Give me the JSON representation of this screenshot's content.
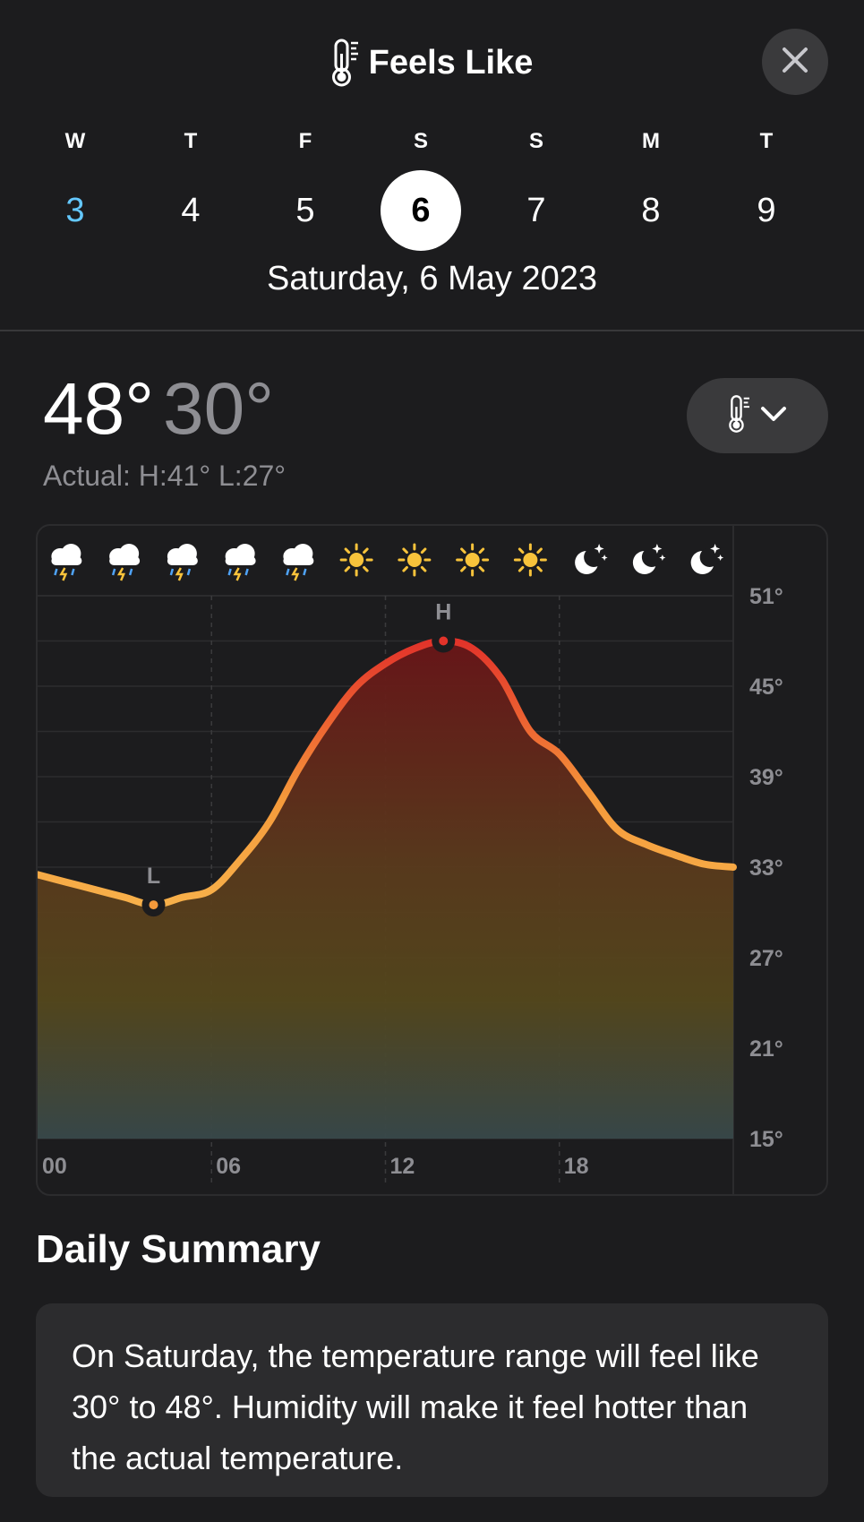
{
  "header": {
    "title": "Feels Like",
    "title_icon": "thermometer-icon",
    "close_icon": "close-icon"
  },
  "days": [
    {
      "letter": "W",
      "num": "3",
      "state": "today"
    },
    {
      "letter": "T",
      "num": "4",
      "state": ""
    },
    {
      "letter": "F",
      "num": "5",
      "state": ""
    },
    {
      "letter": "S",
      "num": "6",
      "state": "selected"
    },
    {
      "letter": "S",
      "num": "7",
      "state": ""
    },
    {
      "letter": "M",
      "num": "8",
      "state": ""
    },
    {
      "letter": "T",
      "num": "9",
      "state": ""
    }
  ],
  "selected_date": "Saturday, 6 May 2023",
  "summary_temps": {
    "high": "48°",
    "low": "30°",
    "actual": "Actual: H:41° L:27°"
  },
  "metric_selector": {
    "icon": "thermometer-icon",
    "chevron": "chevron-down-icon"
  },
  "chart_data": {
    "type": "area",
    "x_ticks": [
      "00",
      "06",
      "12",
      "18"
    ],
    "y_ticks": [
      "51°",
      "45°",
      "39°",
      "33°",
      "27°",
      "21°",
      "15°"
    ],
    "ylim": [
      15,
      51
    ],
    "xlim": [
      0,
      24
    ],
    "weather_icons": [
      "thunderstorm",
      "thunderstorm",
      "thunderstorm",
      "thunderstorm",
      "thunderstorm",
      "sun",
      "sun",
      "sun",
      "sun",
      "moon-stars",
      "moon-stars",
      "moon-stars"
    ],
    "series": [
      {
        "x": [
          0,
          1,
          2,
          3,
          4,
          5,
          6,
          7,
          8,
          9,
          10,
          11,
          12,
          13,
          14,
          15,
          16,
          17,
          18,
          19,
          20,
          21,
          22,
          23,
          24
        ],
        "values": [
          32.5,
          32,
          31.5,
          31,
          30.5,
          31,
          31.5,
          33.5,
          36,
          39.5,
          42.5,
          45,
          46.5,
          47.5,
          48,
          47.5,
          45.5,
          42,
          40.5,
          38,
          35.5,
          34.5,
          33.8,
          33.2,
          33
        ]
      }
    ],
    "high": {
      "label": "H",
      "x": 14,
      "value": 48
    },
    "low": {
      "label": "L",
      "x": 4,
      "value": 30.5
    }
  },
  "daily_summary": {
    "title": "Daily Summary",
    "text": "On Saturday, the temperature range will feel like 30° to 48°. Humidity will make it feel hotter than the actual temperature."
  }
}
